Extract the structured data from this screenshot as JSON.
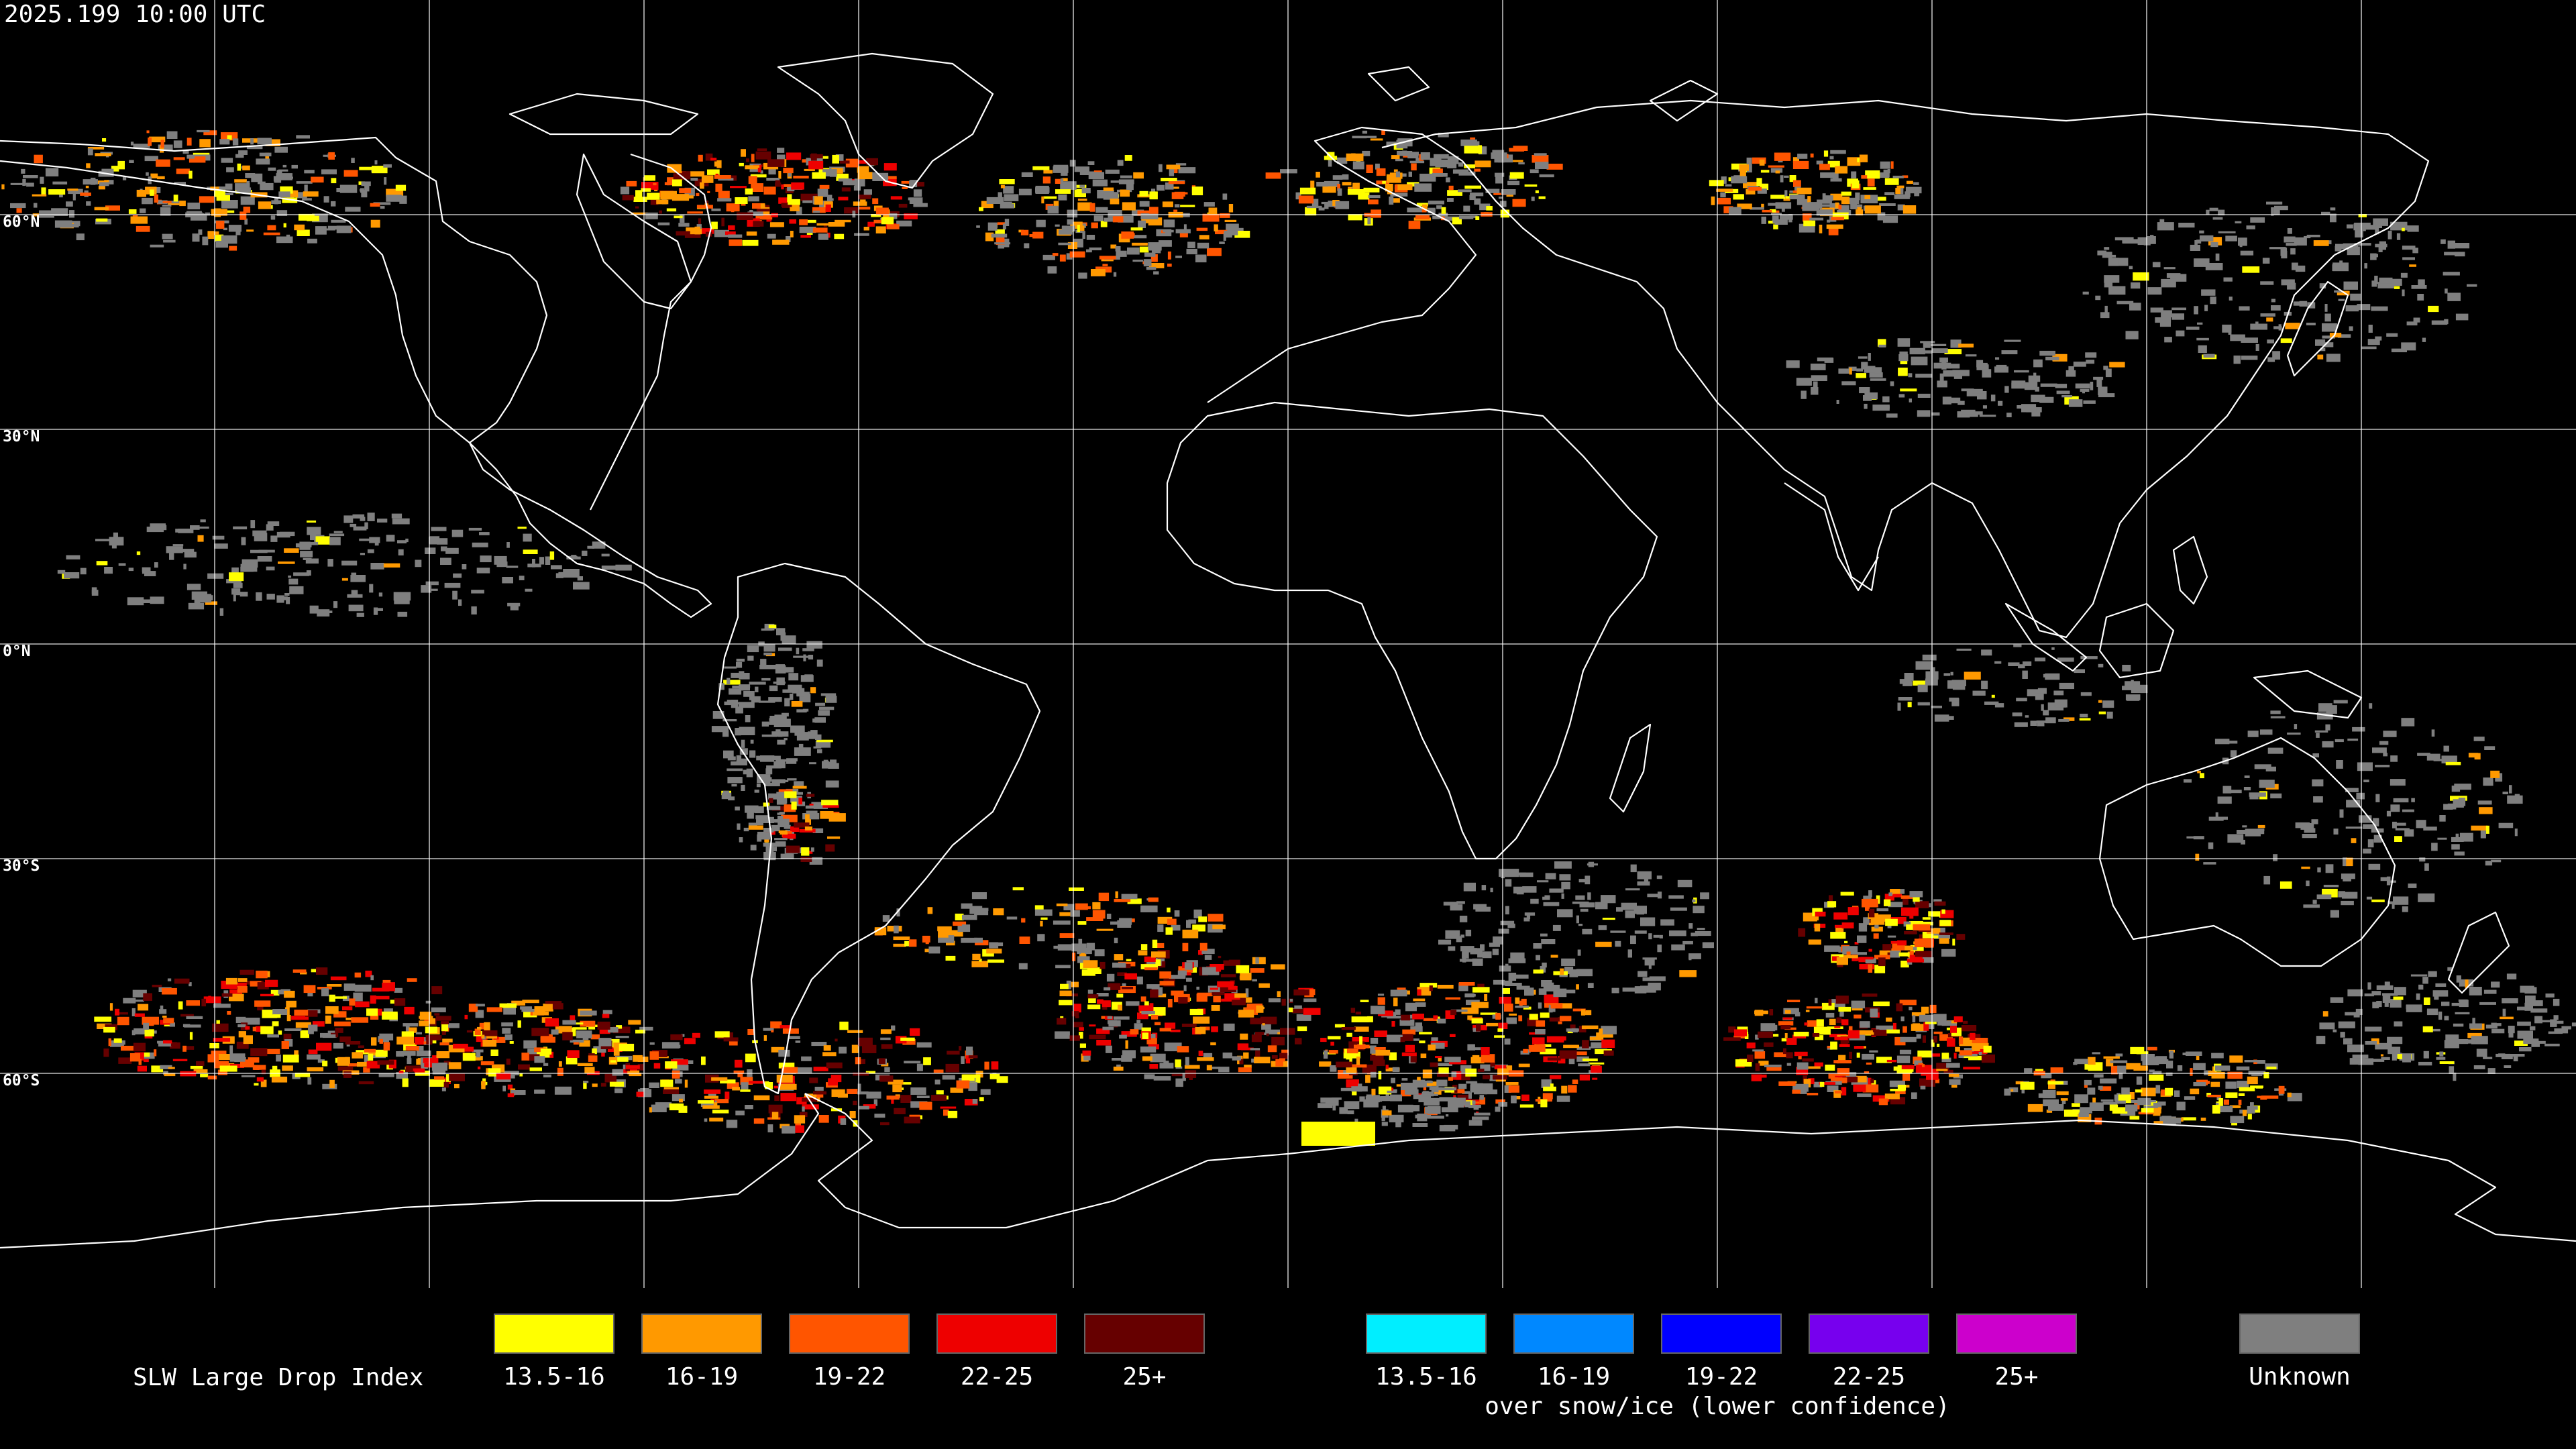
{
  "header": {
    "timestamp": "2025.199 10:00 UTC"
  },
  "map": {
    "projection": "equirectangular",
    "background_color": "#000000",
    "coastline_color": "#ffffff",
    "grid_color": "#ffffff",
    "latitude_labels": [
      "60°N",
      "30°N",
      "0°N",
      "30°S",
      "60°S"
    ],
    "grid_lon_lines": 11,
    "grid_lat_lines": 5
  },
  "legend": {
    "title": "SLW Large Drop Index",
    "groups": [
      {
        "name": "normal",
        "items": [
          {
            "label": "13.5-16",
            "color": "#ffff00"
          },
          {
            "label": "16-19",
            "color": "#ff9900"
          },
          {
            "label": "19-22",
            "color": "#ff5500"
          },
          {
            "label": "22-25",
            "color": "#ee0000"
          },
          {
            "label": "25+",
            "color": "#660000"
          }
        ]
      },
      {
        "name": "snow-ice",
        "caption": "over snow/ice (lower confidence)",
        "items": [
          {
            "label": "13.5-16",
            "color": "#00eeff"
          },
          {
            "label": "16-19",
            "color": "#0088ff"
          },
          {
            "label": "19-22",
            "color": "#0000ff"
          },
          {
            "label": "22-25",
            "color": "#7700ee"
          },
          {
            "label": "25+",
            "color": "#cc00cc"
          }
        ]
      },
      {
        "name": "unknown",
        "items": [
          {
            "label": "Unknown",
            "color": "#7f7f7f"
          }
        ]
      }
    ]
  }
}
